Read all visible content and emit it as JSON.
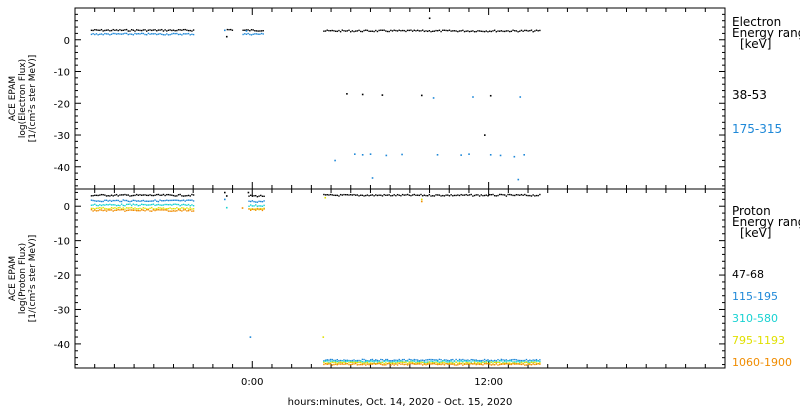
{
  "xlabel": "hours:minutes, Oct. 14, 2020 - Oct. 15, 2020",
  "x_tick_labels": [
    {
      "hours": 0,
      "label": "0:00"
    },
    {
      "hours": 12,
      "label": "12:00"
    }
  ],
  "chart_data": [
    {
      "type": "scatter",
      "ylabel": [
        "ACE EPAM",
        "log(Electron Flux)",
        "[1/(cm²s ster MeV)]"
      ],
      "ylim": [
        -47,
        10
      ],
      "yticks": [
        0,
        -10,
        -20,
        -30,
        -40
      ],
      "legend_title": [
        "Electron",
        "Energy ranges",
        "[keV]"
      ],
      "series": [
        {
          "name": "38-53",
          "color": "#000000",
          "segments": [
            [
              -8.2,
              -3.0,
              3.0
            ],
            [
              -1.3,
              -1.0,
              3.2
            ],
            [
              -0.5,
              0.6,
              3.0
            ],
            [
              3.6,
              14.6,
              2.8
            ]
          ],
          "points": [
            [
              9.0,
              6.8
            ],
            [
              4.8,
              -17.0
            ],
            [
              5.6,
              -17.2
            ],
            [
              6.6,
              -17.4
            ],
            [
              8.6,
              -17.5
            ],
            [
              12.1,
              -17.6
            ],
            [
              11.8,
              -30.0
            ],
            [
              -1.3,
              1.0
            ]
          ]
        },
        {
          "name": "175-315",
          "color": "#1e88d8",
          "segments": [
            [
              -8.2,
              -3.0,
              1.8
            ],
            [
              -0.5,
              0.6,
              1.8
            ]
          ],
          "points": [
            [
              -1.4,
              3.0
            ],
            [
              9.2,
              -18.3
            ],
            [
              11.2,
              -18.0
            ],
            [
              13.6,
              -18.0
            ],
            [
              5.2,
              -36.0
            ],
            [
              5.6,
              -36.2
            ],
            [
              6.0,
              -36.0
            ],
            [
              6.8,
              -36.4
            ],
            [
              7.6,
              -36.1
            ],
            [
              9.4,
              -36.2
            ],
            [
              10.6,
              -36.3
            ],
            [
              11.0,
              -36.0
            ],
            [
              12.1,
              -36.2
            ],
            [
              12.6,
              -36.4
            ],
            [
              13.3,
              -36.8
            ],
            [
              13.8,
              -36.2
            ],
            [
              4.2,
              -38.0
            ],
            [
              6.1,
              -43.5
            ],
            [
              13.5,
              -44.0
            ],
            [
              -0.3,
              2.8
            ]
          ]
        }
      ]
    },
    {
      "type": "scatter",
      "ylabel": [
        "ACE EPAM",
        "log(Proton Flux)",
        "[1/(cm²s ster MeV)]"
      ],
      "ylim": [
        -47,
        5
      ],
      "yticks": [
        0,
        -10,
        -20,
        -30,
        -40
      ],
      "legend_title": [
        "Proton",
        "Energy ranges",
        "[keV]"
      ],
      "series": [
        {
          "name": "47-68",
          "color": "#000000",
          "segments": [
            [
              -8.2,
              -3.0,
              3.2
            ],
            [
              -0.2,
              0.6,
              3.0
            ],
            [
              3.6,
              14.6,
              3.2
            ]
          ],
          "points": [
            [
              -1.4,
              4.0
            ],
            [
              -1.3,
              3.0
            ],
            [
              -0.2,
              4.0
            ]
          ]
        },
        {
          "name": "115-195",
          "color": "#1e88d8",
          "segments": [
            [
              -8.2,
              -3.0,
              1.6
            ],
            [
              -0.2,
              0.6,
              1.4
            ],
            [
              3.6,
              14.6,
              -44.7
            ]
          ],
          "points": [
            [
              -1.4,
              2.0
            ],
            [
              -0.1,
              -38.0
            ]
          ]
        },
        {
          "name": "310-580",
          "color": "#18d2d2",
          "segments": [
            [
              -8.2,
              -3.0,
              0.4
            ],
            [
              -0.2,
              0.6,
              0.2
            ],
            [
              3.6,
              14.6,
              -45.1
            ]
          ],
          "points": [
            [
              -1.3,
              -0.4
            ]
          ]
        },
        {
          "name": "795-1193",
          "color": "#e0e000",
          "segments": [
            [
              -8.2,
              -3.0,
              -0.6
            ],
            [
              -0.2,
              0.6,
              -0.8
            ],
            [
              3.6,
              14.6,
              -45.5
            ]
          ],
          "points": [
            [
              3.6,
              -38.0
            ],
            [
              3.7,
              2.5
            ],
            [
              8.6,
              2.0
            ]
          ]
        },
        {
          "name": "1060-1900",
          "color": "#f08c00",
          "segments": [
            [
              -8.2,
              -3.0,
              -1.2
            ],
            [
              -0.2,
              0.6,
              -1.0
            ],
            [
              3.6,
              14.6,
              -45.9
            ]
          ],
          "points": [
            [
              -0.5,
              -0.5
            ],
            [
              8.6,
              1.4
            ]
          ]
        }
      ]
    }
  ]
}
